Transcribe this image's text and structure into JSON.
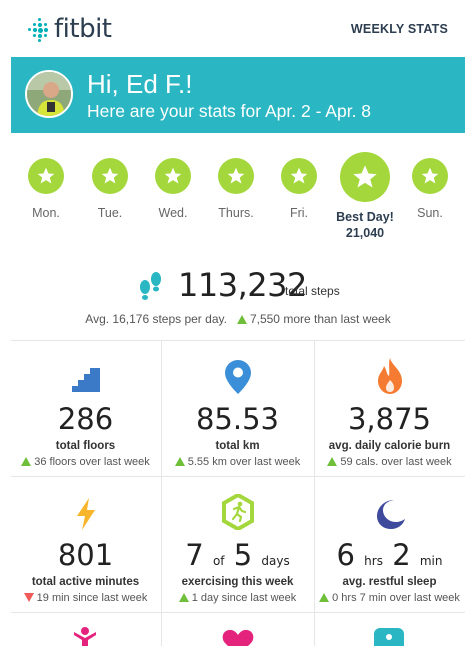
{
  "header": {
    "logo_text": "fitbit",
    "weekly_stats_link": "WEEKLY STATS"
  },
  "banner": {
    "greeting": "Hi, Ed F.!",
    "subtitle": "Here are your stats for Apr. 2 - Apr. 8"
  },
  "days": [
    {
      "label": "Mon.",
      "best": false
    },
    {
      "label": "Tue.",
      "best": false
    },
    {
      "label": "Wed.",
      "best": false
    },
    {
      "label": "Thurs.",
      "best": false
    },
    {
      "label": "Fri.",
      "best": false
    },
    {
      "label": "Best Day!",
      "best": true,
      "value": "21,040"
    },
    {
      "label": "Sun.",
      "best": false
    }
  ],
  "steps": {
    "total": "113,232",
    "unit": "total steps",
    "avg_text": "Avg. 16,176 steps per day.",
    "change_text": "7,550 more than last week"
  },
  "stats": [
    {
      "icon": "stairs-icon",
      "value": "286",
      "label": "total floors",
      "trend": "up",
      "comparison": "36 floors over last week"
    },
    {
      "icon": "location-pin-icon",
      "value": "85.53",
      "label": "total km",
      "trend": "up",
      "comparison": "5.55 km over last week"
    },
    {
      "icon": "flame-icon",
      "value": "3,875",
      "label": "avg. daily calorie burn",
      "trend": "up",
      "comparison": "59 cals. over last week"
    },
    {
      "icon": "lightning-icon",
      "value": "801",
      "label": "total active minutes",
      "trend": "down",
      "comparison": "19 min since last week"
    },
    {
      "icon": "runner-badge-icon",
      "value_a": "7",
      "value_of": "of",
      "value_b": "5",
      "value_unit": "days",
      "label": "exercising this week",
      "trend": "up",
      "comparison": "1 day since last week"
    },
    {
      "icon": "moon-icon",
      "value_a": "6",
      "unit_a": "hrs",
      "value_b": "2",
      "unit_b": "min",
      "label": "avg. restful sleep",
      "trend": "up",
      "comparison": "0 hrs 7 min over last week"
    }
  ],
  "colors": {
    "teal": "#2ab7c3",
    "green": "#a3d73b",
    "navy": "#2d3e50",
    "orange": "#f57b33",
    "blue": "#3b7ac7",
    "yellow": "#f7b52b",
    "magenta": "#e4237d"
  }
}
